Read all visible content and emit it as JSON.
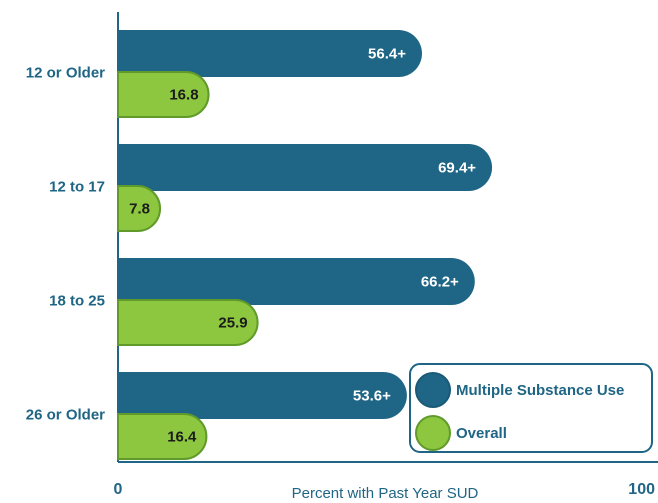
{
  "chart_data": {
    "type": "bar",
    "orientation": "horizontal",
    "categories": [
      "12 or Older",
      "12 to 17",
      "18 to 25",
      "26 or Older"
    ],
    "series": [
      {
        "name": "Multiple Substance Use",
        "color": "#1f6585",
        "values": [
          56.4,
          69.4,
          66.2,
          53.6
        ],
        "value_labels": [
          "56.4+",
          "69.4+",
          "66.2+",
          "53.6+"
        ]
      },
      {
        "name": "Overall",
        "color": "#8dc63f",
        "values": [
          16.8,
          7.8,
          25.9,
          16.4
        ]
      }
    ],
    "xlabel": "Percent with Past Year SUD",
    "xlim": [
      0,
      100
    ],
    "xticks": [
      0,
      100
    ],
    "legend": "lower right"
  }
}
